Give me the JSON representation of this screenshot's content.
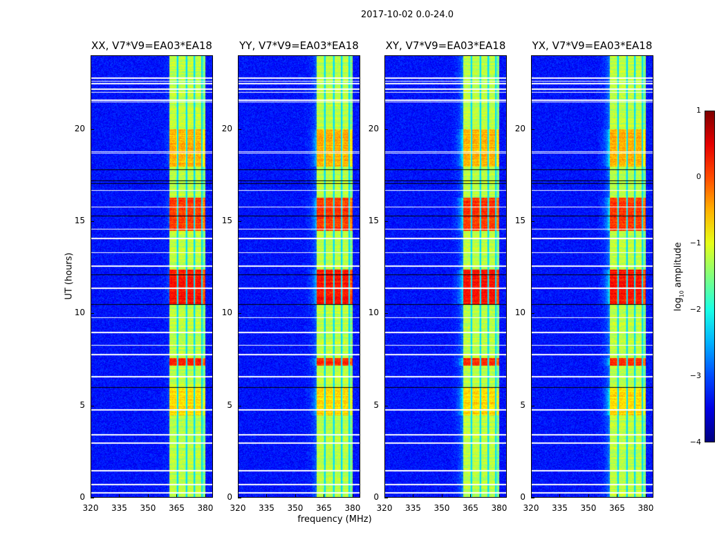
{
  "chart_data": {
    "type": "heatmap",
    "title": "2017-10-02 0.0-24.0",
    "xlabel": "frequency (MHz)",
    "ylabel": "UT (hours)",
    "xlim": [
      320,
      384
    ],
    "ylim": [
      0,
      24
    ],
    "xticks": [
      "320",
      "335",
      "350",
      "365",
      "380"
    ],
    "xtick_values": [
      320,
      335,
      350,
      365,
      380
    ],
    "yticks": [
      "0",
      "5",
      "10",
      "15",
      "20"
    ],
    "ytick_values": [
      0,
      5,
      10,
      15,
      20
    ],
    "panels": [
      {
        "title": "XX, V7*V9=EA03*EA18",
        "halo": 0.2
      },
      {
        "title": "YY, V7*V9=EA03*EA18",
        "halo": 0.6
      },
      {
        "title": "XY, V7*V9=EA03*EA18",
        "halo": 0.8
      },
      {
        "title": "YX, V7*V9=EA03*EA18",
        "halo": 0.8
      }
    ],
    "rfi_band_mhz": [
      361,
      380
    ],
    "channel_gaps_mhz": [
      365.5,
      370,
      374,
      378
    ],
    "background_log10_amplitude": -3.3,
    "band_log10_amplitude": -1.2,
    "hot_intervals_hours": [
      {
        "range": [
          18.0,
          20.0
        ],
        "log10_amplitude": -0.5
      },
      {
        "range": [
          14.5,
          16.3
        ],
        "log10_amplitude": 0.1
      },
      {
        "range": [
          10.5,
          12.4
        ],
        "log10_amplitude": 0.3
      },
      {
        "range": [
          7.2,
          7.6
        ],
        "log10_amplitude": 0.2
      },
      {
        "range": [
          4.5,
          6.0
        ],
        "log10_amplitude": -0.7
      }
    ],
    "flagged_hours_white": [
      22.8,
      22.6,
      22.5,
      22.2,
      22.0,
      21.6,
      21.5,
      18.8,
      18.7,
      16.7,
      15.8,
      14.6,
      14.1,
      13.3,
      12.6,
      11.4,
      9.8,
      9.0,
      8.3,
      7.8,
      6.6,
      4.8,
      4.75,
      3.45,
      3.0,
      1.5,
      0.75,
      0.3
    ],
    "flagged_hours_black": [
      17.8,
      17.2,
      17.05,
      15.3,
      12.1,
      10.5,
      6.0
    ],
    "colorbar": {
      "label": "log10 amplitude",
      "label_base": "log",
      "label_sub": "10",
      "label_rest": " amplitude",
      "range": [
        -4,
        1
      ],
      "ticks": [
        "1",
        "0",
        "−1",
        "−2",
        "−3",
        "−4"
      ],
      "tick_values": [
        1,
        0,
        -1,
        -2,
        -3,
        -4
      ],
      "colormap": "jet"
    }
  }
}
